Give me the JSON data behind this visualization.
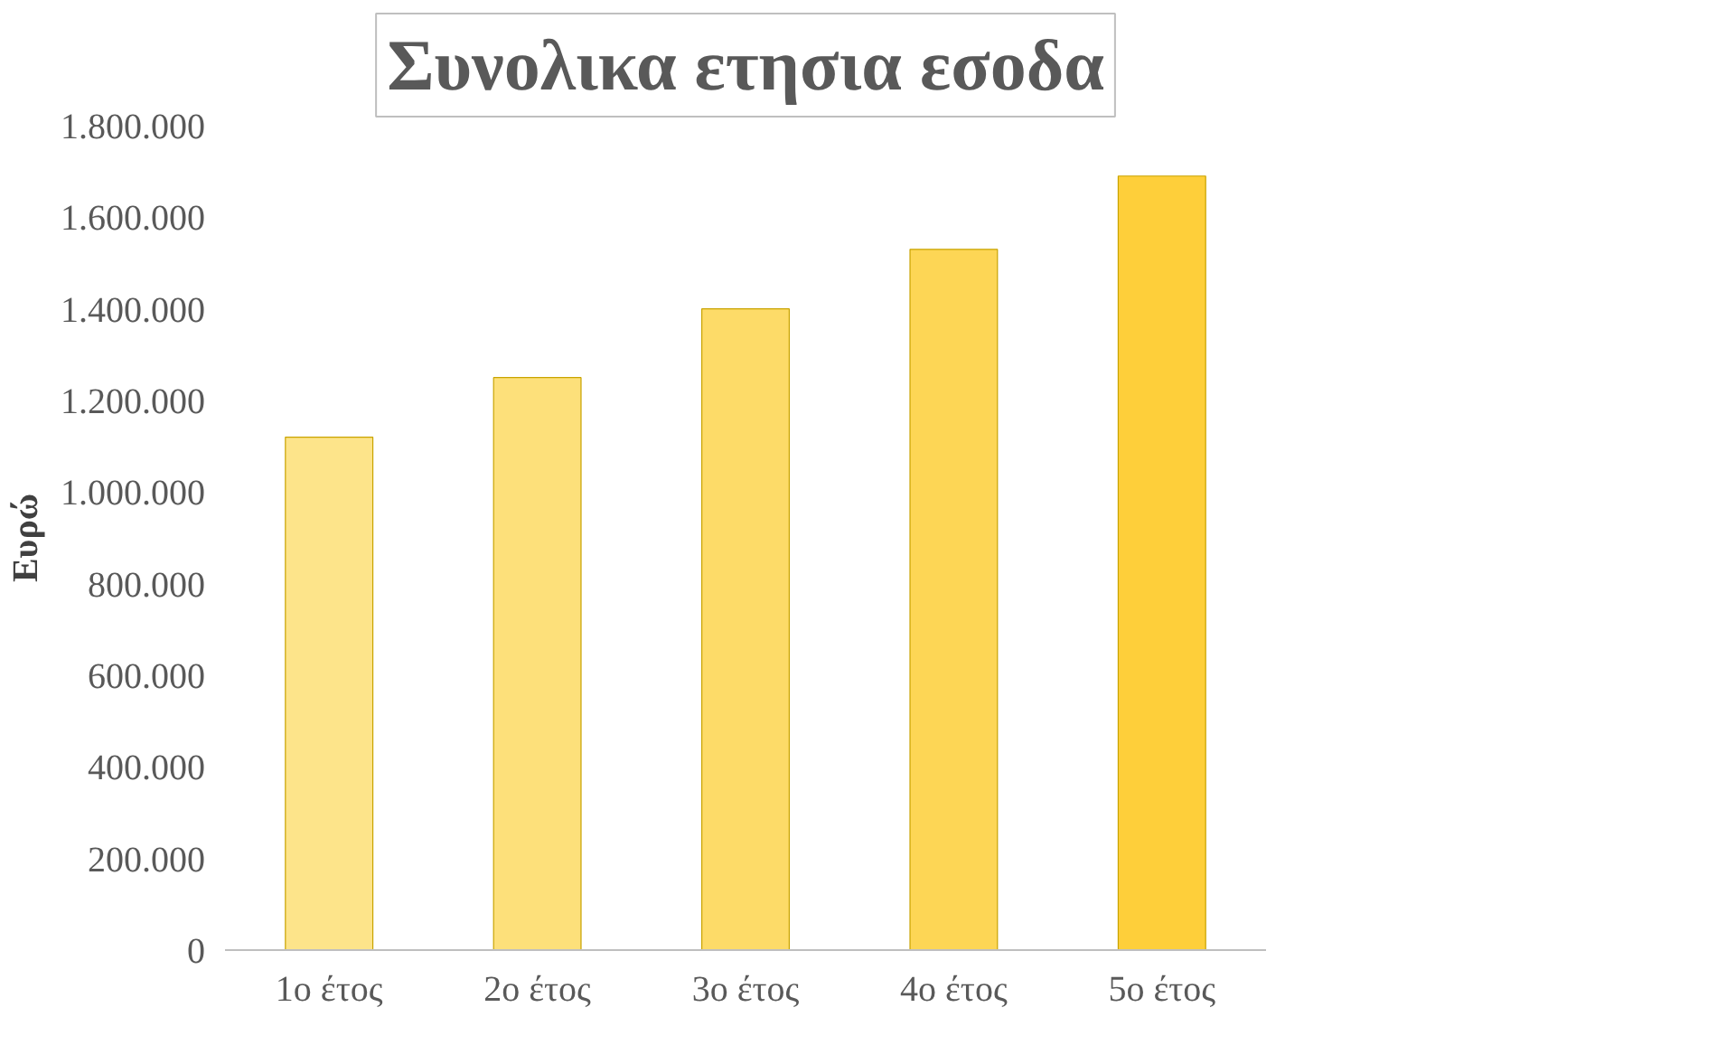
{
  "chart_data": {
    "type": "bar",
    "title": "Συνολικα ετησια εσοδα",
    "ylabel": "Ευρώ",
    "categories": [
      "1ο έτος",
      "2ο έτος",
      "3ο έτος",
      "4ο έτος",
      "5ο έτος"
    ],
    "values": [
      1120000,
      1250000,
      1400000,
      1530000,
      1690000
    ],
    "colors": [
      "#fde48a",
      "#fde07a",
      "#fddb68",
      "#fdd655",
      "#fecf3a"
    ],
    "ylim": [
      0,
      1800000
    ],
    "yticks": [
      {
        "value": 0,
        "label": "0"
      },
      {
        "value": 200000,
        "label": "200.000"
      },
      {
        "value": 400000,
        "label": "400.000"
      },
      {
        "value": 600000,
        "label": "600.000"
      },
      {
        "value": 800000,
        "label": "800.000"
      },
      {
        "value": 1000000,
        "label": "1.000.000"
      },
      {
        "value": 1200000,
        "label": "1.200.000"
      },
      {
        "value": 1400000,
        "label": "1.400.000"
      },
      {
        "value": 1600000,
        "label": "1.600.000"
      },
      {
        "value": 1800000,
        "label": "1.800.000"
      }
    ],
    "grid": false
  }
}
